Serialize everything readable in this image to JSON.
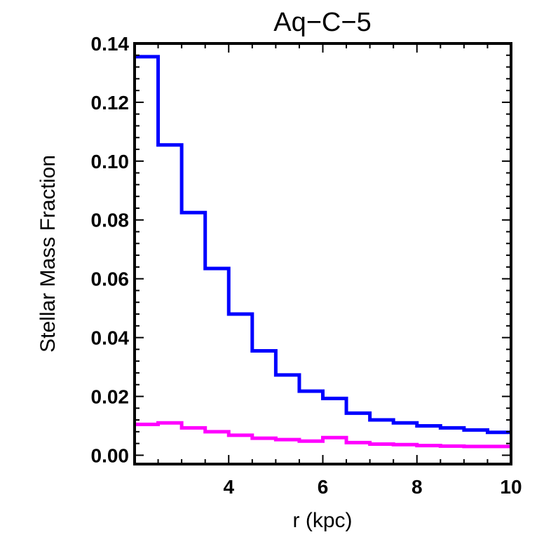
{
  "chart_data": {
    "type": "line",
    "step": true,
    "title": "Aq−C−5",
    "xlabel": "r (kpc)",
    "ylabel": "Stellar Mass Fraction",
    "xlim": [
      2,
      10
    ],
    "ylim": [
      -0.003,
      0.14
    ],
    "x_ticks": [
      4,
      6,
      8,
      10
    ],
    "x_tick_labels": [
      "4",
      "6",
      "8",
      "10"
    ],
    "y_ticks": [
      0.0,
      0.02,
      0.04,
      0.06,
      0.08,
      0.1,
      0.12,
      0.14
    ],
    "y_tick_labels": [
      "0.00",
      "0.02",
      "0.04",
      "0.06",
      "0.08",
      "0.10",
      "0.12",
      "0.14"
    ],
    "bin_edges": [
      2.0,
      2.5,
      3.0,
      3.5,
      4.0,
      4.5,
      5.0,
      5.5,
      6.0,
      6.5,
      7.0,
      7.5,
      8.0,
      8.5,
      9.0,
      9.5,
      10.0
    ],
    "series": [
      {
        "color": "#0000ff",
        "values": [
          0.1355,
          0.1055,
          0.0825,
          0.0635,
          0.048,
          0.0355,
          0.0273,
          0.0218,
          0.0193,
          0.0143,
          0.012,
          0.011,
          0.01,
          0.0093,
          0.0086,
          0.0078
        ]
      },
      {
        "color": "#ff00ff",
        "values": [
          0.0105,
          0.011,
          0.0093,
          0.008,
          0.0068,
          0.0058,
          0.0053,
          0.0048,
          0.006,
          0.0043,
          0.0038,
          0.0036,
          0.0033,
          0.0031,
          0.003,
          0.003
        ]
      }
    ],
    "grid": false,
    "legend": "none"
  }
}
